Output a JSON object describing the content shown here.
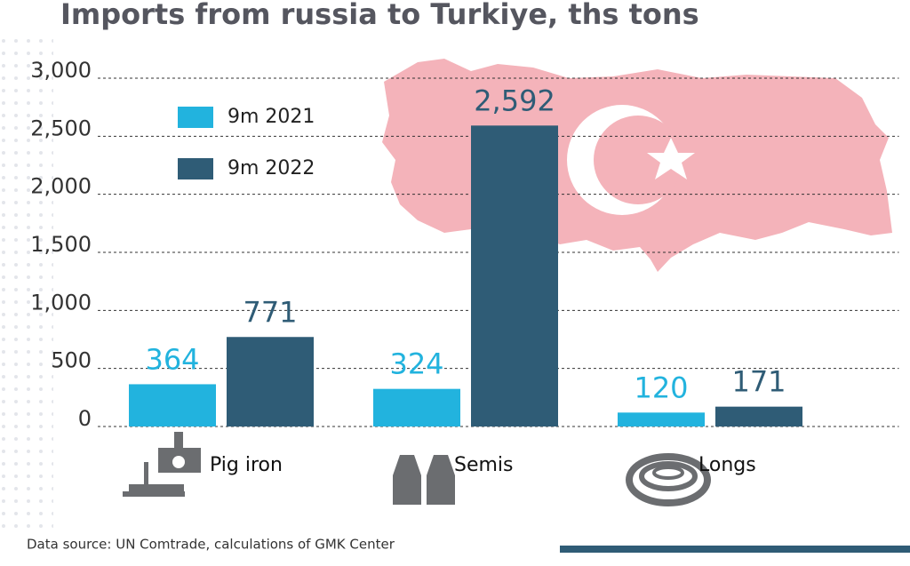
{
  "chart_data": {
    "type": "bar",
    "title": "Imports from russia to Turkiye, ths tons",
    "categories": [
      "Pig iron",
      "Semis",
      "Longs"
    ],
    "series": [
      {
        "name": "9m 2021",
        "color": "#22b3de",
        "values": [
          364,
          324,
          120
        ]
      },
      {
        "name": "9m 2022",
        "color": "#2f5c76",
        "values": [
          771,
          2592,
          171
        ],
        "value_labels": [
          "771",
          "2,592",
          "171"
        ]
      }
    ],
    "ylim": [
      0,
      3000
    ],
    "yticks": [
      0,
      500,
      {
        "value": 1000,
        "label": "1,000"
      },
      {
        "value": 1500,
        "label": "1,500"
      },
      {
        "value": 2000,
        "label": "2,000"
      },
      {
        "value": 2500,
        "label": "2,500"
      },
      {
        "value": 3000,
        "label": "3,000"
      }
    ],
    "grid": true,
    "source": "Data source: UN Comtrade, calculations of GMK Center"
  }
}
